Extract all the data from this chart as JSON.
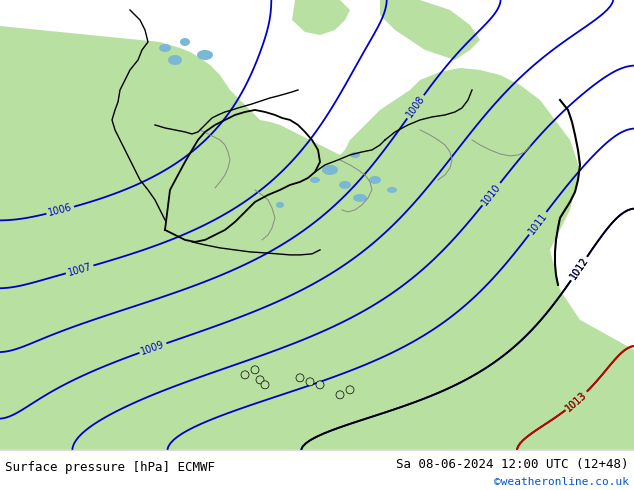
{
  "title_left": "Surface pressure [hPa] ECMWF",
  "title_right": "Sa 08-06-2024 12:00 UTC (12+48)",
  "credit": "©weatheronline.co.uk",
  "land_color": "#b8e0a0",
  "sea_color": "#c8c8c8",
  "blue_isobar_color": "#0000cc",
  "red_isobar_color": "#cc0000",
  "black_border_color": "#000000",
  "gray_border_color": "#888888",
  "footer_bg": "#ffffff",
  "fig_width": 6.34,
  "fig_height": 4.9,
  "dpi": 100
}
